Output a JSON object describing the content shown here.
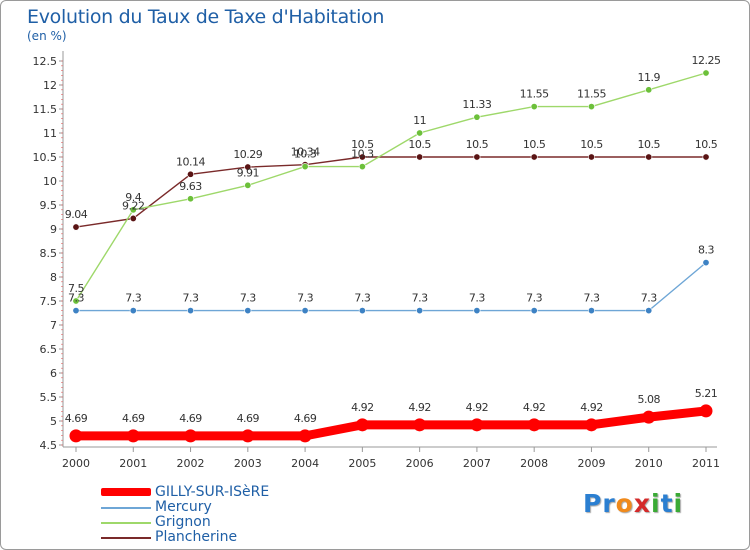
{
  "header": {
    "title": "Evolution du Taux de Taxe d'Habitation",
    "subtitle": "(en %)"
  },
  "logo": {
    "text": "Proxiti",
    "letters": [
      "P",
      "r",
      "o",
      "x",
      "i",
      "t",
      "i"
    ],
    "colors": [
      "#2b7fd1",
      "#2b7fd1",
      "#f08a1c",
      "#d42a2a",
      "#3aaa35",
      "#2b7fd1",
      "#3aaa35"
    ]
  },
  "chart_data": {
    "type": "line",
    "title": "Evolution du Taux de Taxe d'Habitation",
    "subtitle": "(en %)",
    "x": [
      "2000",
      "2001",
      "2002",
      "2003",
      "2004",
      "2005",
      "2006",
      "2007",
      "2008",
      "2009",
      "2010",
      "2011"
    ],
    "ylim": [
      4.5,
      12.5
    ],
    "yticks": [
      "4.5",
      "5",
      "5.5",
      "6",
      "6.5",
      "7",
      "7.5",
      "8",
      "8.5",
      "9",
      "9.5",
      "10",
      "10.5",
      "11",
      "11.5",
      "12",
      "12.5"
    ],
    "grid": false,
    "legend_position": "bottom-left",
    "series": [
      {
        "name": "GILLY-SUR-ISèRE",
        "color": "#ff0000",
        "marker_color": "#ff0000",
        "style": "thick",
        "values": [
          4.69,
          4.69,
          4.69,
          4.69,
          4.69,
          4.92,
          4.92,
          4.92,
          4.92,
          4.92,
          5.08,
          5.21
        ],
        "labels": [
          "4.69",
          "4.69",
          "4.69",
          "4.69",
          "4.69",
          "4.92",
          "4.92",
          "4.92",
          "4.92",
          "4.92",
          "5.08",
          "5.21"
        ]
      },
      {
        "name": "Mercury",
        "color": "#6ea6d6",
        "marker_color": "#3d82c4",
        "style": "thin",
        "values": [
          7.3,
          7.3,
          7.3,
          7.3,
          7.3,
          7.3,
          7.3,
          7.3,
          7.3,
          7.3,
          7.3,
          8.3
        ],
        "labels": [
          "7.3",
          "7.3",
          "7.3",
          "7.3",
          "7.3",
          "7.3",
          "7.3",
          "7.3",
          "7.3",
          "7.3",
          "7.3",
          "8.3"
        ]
      },
      {
        "name": "Grignon",
        "color": "#9ed86a",
        "marker_color": "#6cc03a",
        "style": "thin",
        "values": [
          7.5,
          9.4,
          9.63,
          9.91,
          10.3,
          10.3,
          11,
          11.33,
          11.55,
          11.55,
          11.9,
          12.25
        ],
        "labels": [
          "7.5",
          "9.4",
          "9.63",
          "9.91",
          "10.3",
          "10.3",
          "11",
          "11.33",
          "11.55",
          "11.55",
          "11.9",
          "12.25"
        ]
      },
      {
        "name": "Plancherine",
        "color": "#7a2a2a",
        "marker_color": "#5a1414",
        "style": "thin",
        "values": [
          9.04,
          9.22,
          10.14,
          10.29,
          10.34,
          10.5,
          10.5,
          10.5,
          10.5,
          10.5,
          10.5,
          10.5
        ],
        "labels": [
          "9.04",
          "9.22",
          "10.14",
          "10.29",
          "10.34",
          "10.5",
          "10.5",
          "10.5",
          "10.5",
          "10.5",
          "10.5",
          "10.5"
        ]
      }
    ]
  }
}
